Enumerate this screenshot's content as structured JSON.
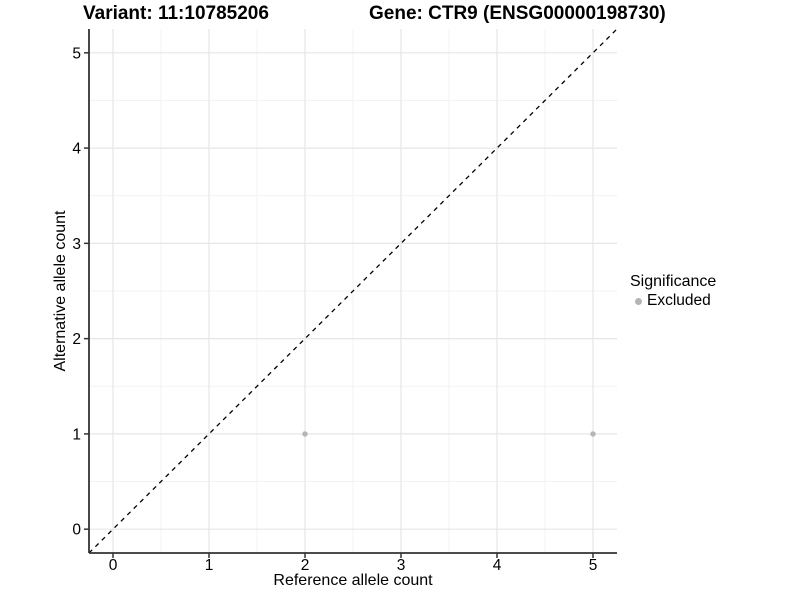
{
  "header": {
    "variant_title": "Variant: 11:10785206",
    "gene_title": "Gene: CTR9 (ENSG00000198730)"
  },
  "chart_data": {
    "type": "scatter",
    "title_left": "Variant: 11:10785206",
    "title_right": "Gene: CTR9 (ENSG00000198730)",
    "xlabel": "Reference allele count",
    "ylabel": "Alternative allele count",
    "xlim": [
      -0.25,
      5.25
    ],
    "ylim": [
      -0.25,
      5.25
    ],
    "xticks": [
      0,
      1,
      2,
      3,
      4,
      5
    ],
    "yticks": [
      0,
      1,
      2,
      3,
      4,
      5
    ],
    "grid": {
      "major": true,
      "minor": true
    },
    "reference_line": {
      "equation": "y = x",
      "style": "dashed",
      "color": "#000000"
    },
    "series": [
      {
        "name": "Excluded",
        "color": "#b5b5b5",
        "points": [
          {
            "x": 2,
            "y": 1
          },
          {
            "x": 5,
            "y": 1
          }
        ]
      }
    ],
    "legend_position": "right"
  },
  "legend": {
    "title": "Significance",
    "items": [
      {
        "label": "Excluded",
        "color": "#b5b5b5"
      }
    ]
  },
  "colors": {
    "axis": "#333333",
    "tick_label": "#000000",
    "grid_major": "#e6e6e6",
    "grid_minor": "#f3f3f3",
    "background": "#ffffff"
  }
}
